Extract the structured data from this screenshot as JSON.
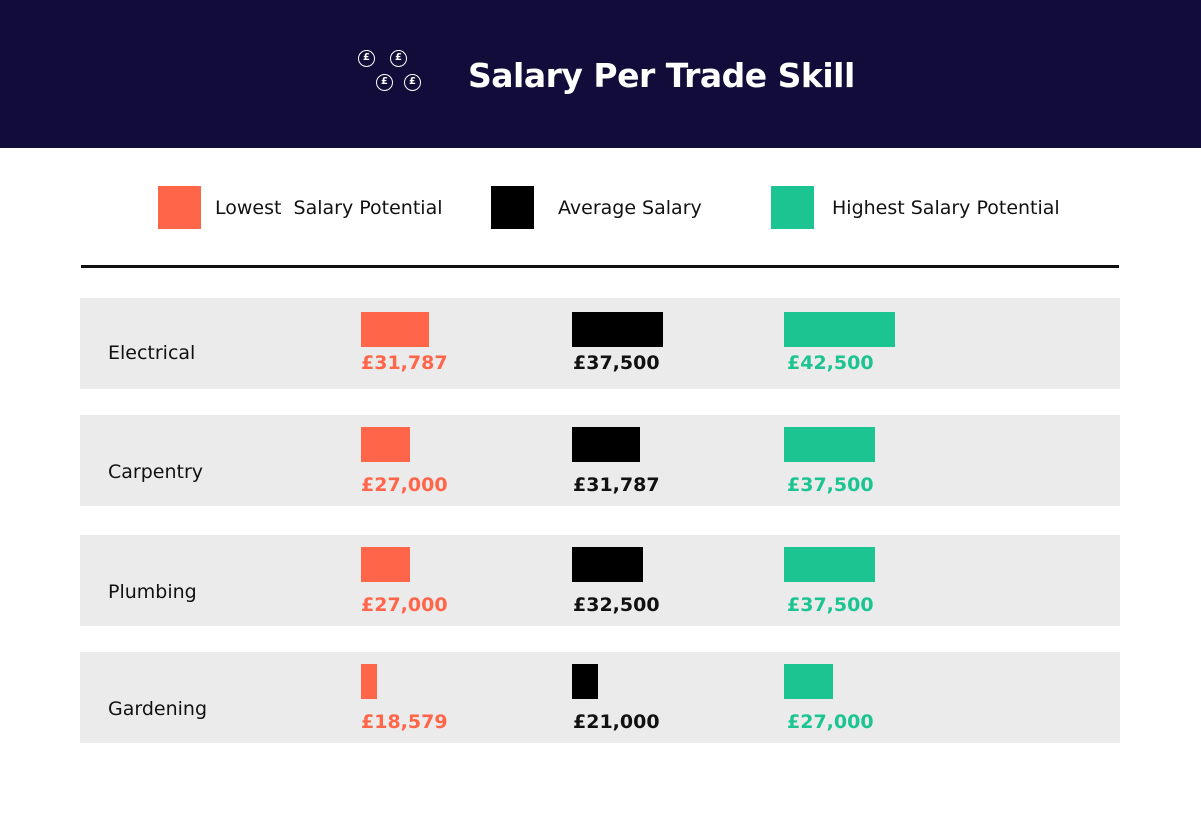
{
  "header": {
    "title": "Salary Per Trade Skill",
    "icon": "pound-coins-icon",
    "coin_symbol": "£",
    "background": "#120c3a"
  },
  "legend": {
    "low": "Lowest  Salary Potential",
    "avg": "Average Salary",
    "high": "Highest Salary Potential"
  },
  "colors": {
    "low": "#ff6649",
    "avg": "#000000",
    "high": "#1cc491"
  },
  "chart_data": {
    "type": "bar",
    "title": "Salary Per Trade Skill",
    "categories": [
      "Electrical",
      "Carpentry",
      "Plumbing",
      "Gardening"
    ],
    "series": [
      {
        "name": "Lowest  Salary Potential",
        "key": "low",
        "values": [
          31787,
          27000,
          27000,
          18579
        ],
        "labels": [
          "£31,787",
          "£27,000",
          "£27,000",
          "£18,579"
        ]
      },
      {
        "name": "Average Salary",
        "key": "avg",
        "values": [
          37500,
          31787,
          32500,
          21000
        ],
        "labels": [
          "£37,500",
          "£31,787",
          "£32,500",
          "£21,000"
        ]
      },
      {
        "name": "Highest Salary Potential",
        "key": "high",
        "values": [
          42500,
          37500,
          37500,
          27000
        ],
        "labels": [
          "£42,500",
          "£37,500",
          "£37,500",
          "£27,000"
        ]
      }
    ],
    "legend": "top"
  }
}
